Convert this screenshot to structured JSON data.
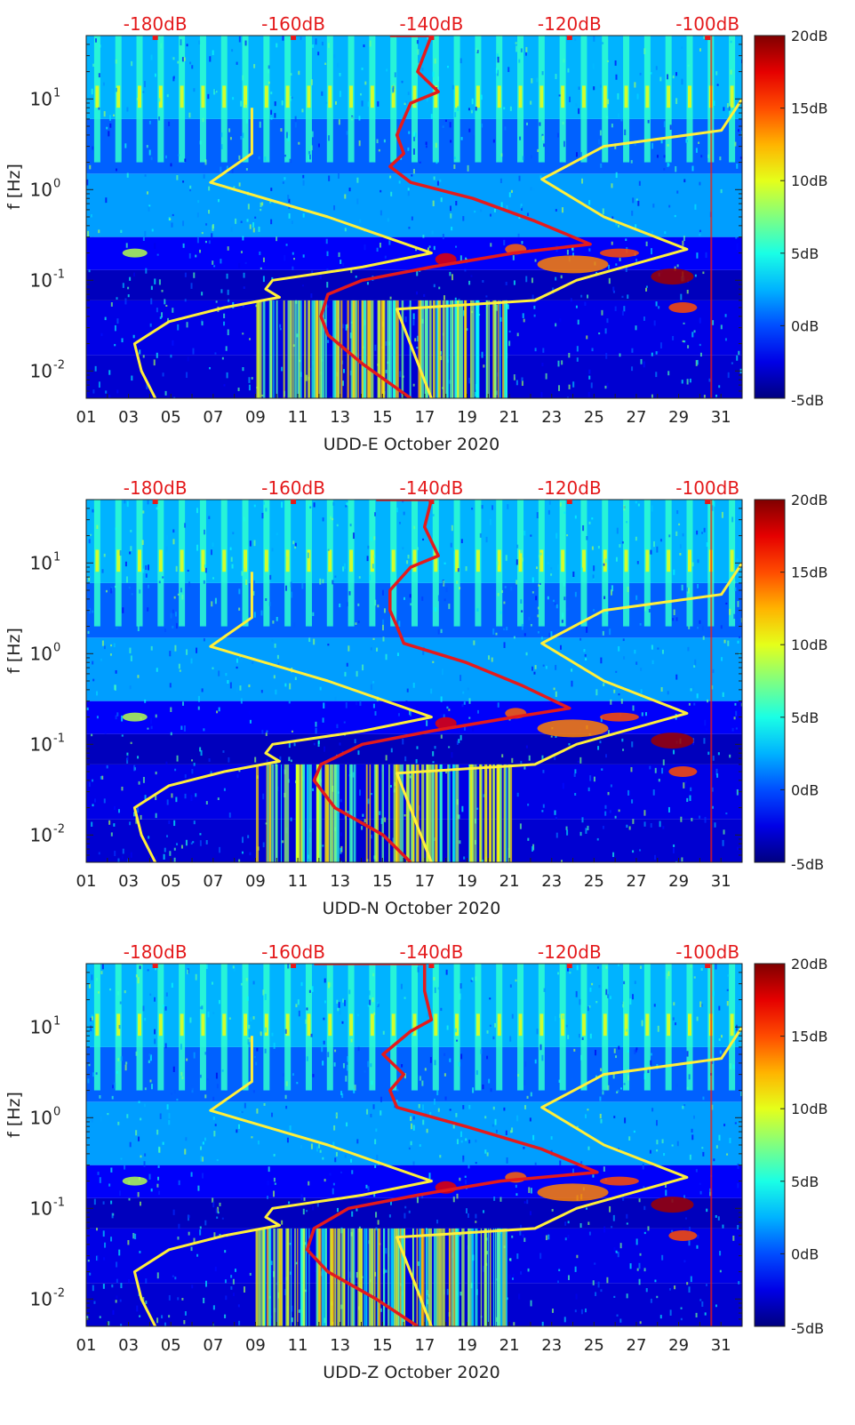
{
  "figure": {
    "x_ticks": [
      "01",
      "03",
      "05",
      "07",
      "09",
      "11",
      "13",
      "15",
      "17",
      "19",
      "21",
      "23",
      "25",
      "27",
      "29",
      "31"
    ],
    "top_ticks": [
      "-180dB",
      "-160dB",
      "-140dB",
      "-120dB",
      "-100dB"
    ],
    "y_label": "f [Hz]",
    "colorbar_ticks": [
      "20dB",
      "15dB",
      "10dB",
      "5dB",
      "0dB",
      "-5dB"
    ]
  },
  "colors": {
    "red_curve": "#e41a1c",
    "yellow_curve": "#ffef3a",
    "top_axis_text": "#e41a1c"
  },
  "chart_data": [
    {
      "type": "heatmap",
      "title": "",
      "xlabel": "UDD-E October 2020",
      "ylabel": "f [Hz]",
      "x_unit": "day of October 2020",
      "xlim": [
        1,
        32
      ],
      "ylim": [
        0.005,
        50
      ],
      "y_scale": "log",
      "colorbar": {
        "range": [
          -5,
          20
        ],
        "unit": "dB",
        "colormap": "jet"
      },
      "top_axis": {
        "ticks": [
          "-180dB",
          "-160dB",
          "-140dB",
          "-120dB",
          "-100dB"
        ],
        "range_dB": [
          -190,
          -95
        ]
      },
      "series": [
        {
          "color": "red",
          "axis": "top",
          "points": [
            [
              -146,
              50
            ],
            [
              -140,
              50
            ],
            [
              -142,
              20
            ],
            [
              -139,
              12
            ],
            [
              -143,
              9
            ],
            [
              -144,
              6
            ],
            [
              -145,
              4
            ],
            [
              -144,
              2.5
            ],
            [
              -146,
              1.8
            ],
            [
              -143,
              1.2
            ],
            [
              -134,
              0.8
            ],
            [
              -125,
              0.45
            ],
            [
              -117,
              0.25
            ],
            [
              -128,
              0.2
            ],
            [
              -140,
              0.14
            ],
            [
              -150,
              0.1
            ],
            [
              -155,
              0.07
            ],
            [
              -156,
              0.04
            ],
            [
              -155,
              0.025
            ],
            [
              -150,
              0.012
            ],
            [
              -143,
              0.005
            ]
          ]
        },
        {
          "color": "yellow",
          "axis": "top",
          "points": [
            [
              -180,
              0.005
            ],
            [
              -182,
              0.01
            ],
            [
              -183,
              0.02
            ],
            [
              -178,
              0.035
            ],
            [
              -170,
              0.05
            ],
            [
              -162,
              0.065
            ],
            [
              -164,
              0.08
            ],
            [
              -163,
              0.1
            ],
            [
              -150,
              0.14
            ],
            [
              -140,
              0.2
            ],
            [
              -155,
              0.5
            ],
            [
              -172,
              1.2
            ],
            [
              -166,
              2.5
            ],
            [
              -166,
              8
            ]
          ]
        },
        {
          "color": "yellow",
          "axis": "top",
          "points": [
            [
              -140,
              0.005
            ],
            [
              -145,
              0.048
            ],
            [
              -125,
              0.06
            ],
            [
              -119,
              0.1
            ],
            [
              -103,
              0.22
            ],
            [
              -115,
              0.5
            ],
            [
              -124,
              1.3
            ],
            [
              -115,
              3
            ],
            [
              -98,
              4.5
            ],
            [
              -95,
              10
            ]
          ]
        }
      ]
    },
    {
      "type": "heatmap",
      "title": "",
      "xlabel": "UDD-N October 2020",
      "ylabel": "f [Hz]",
      "x_unit": "day of October 2020",
      "xlim": [
        1,
        32
      ],
      "ylim": [
        0.005,
        50
      ],
      "y_scale": "log",
      "colorbar": {
        "range": [
          -5,
          20
        ],
        "unit": "dB",
        "colormap": "jet"
      },
      "top_axis": {
        "ticks": [
          "-180dB",
          "-160dB",
          "-140dB",
          "-120dB",
          "-100dB"
        ],
        "range_dB": [
          -190,
          -95
        ]
      },
      "series": [
        {
          "color": "red",
          "axis": "top",
          "points": [
            [
              -148,
              50
            ],
            [
              -140,
              50
            ],
            [
              -141,
              25
            ],
            [
              -139,
              12
            ],
            [
              -143,
              9
            ],
            [
              -146,
              5
            ],
            [
              -146,
              3
            ],
            [
              -145,
              2
            ],
            [
              -144,
              1.3
            ],
            [
              -135,
              0.8
            ],
            [
              -127,
              0.45
            ],
            [
              -120,
              0.25
            ],
            [
              -128,
              0.2
            ],
            [
              -140,
              0.14
            ],
            [
              -150,
              0.1
            ],
            [
              -156,
              0.06
            ],
            [
              -157,
              0.04
            ],
            [
              -154,
              0.02
            ],
            [
              -147,
              0.01
            ],
            [
              -143,
              0.005
            ]
          ]
        },
        {
          "color": "yellow",
          "axis": "top",
          "points": [
            [
              -180,
              0.005
            ],
            [
              -182,
              0.01
            ],
            [
              -183,
              0.02
            ],
            [
              -178,
              0.035
            ],
            [
              -170,
              0.05
            ],
            [
              -162,
              0.065
            ],
            [
              -164,
              0.08
            ],
            [
              -163,
              0.1
            ],
            [
              -150,
              0.14
            ],
            [
              -140,
              0.2
            ],
            [
              -155,
              0.5
            ],
            [
              -172,
              1.2
            ],
            [
              -166,
              2.5
            ],
            [
              -166,
              8
            ]
          ]
        },
        {
          "color": "yellow",
          "axis": "top",
          "points": [
            [
              -140,
              0.005
            ],
            [
              -145,
              0.048
            ],
            [
              -125,
              0.06
            ],
            [
              -119,
              0.1
            ],
            [
              -103,
              0.22
            ],
            [
              -115,
              0.5
            ],
            [
              -124,
              1.3
            ],
            [
              -115,
              3
            ],
            [
              -98,
              4.5
            ],
            [
              -95,
              10
            ]
          ]
        }
      ]
    },
    {
      "type": "heatmap",
      "title": "",
      "xlabel": "UDD-Z October 2020",
      "ylabel": "f [Hz]",
      "x_unit": "day of October 2020",
      "xlim": [
        1,
        32
      ],
      "ylim": [
        0.005,
        50
      ],
      "y_scale": "log",
      "colorbar": {
        "range": [
          -5,
          20
        ],
        "unit": "dB",
        "colormap": "jet"
      },
      "top_axis": {
        "ticks": [
          "-180dB",
          "-160dB",
          "-140dB",
          "-120dB",
          "-100dB"
        ],
        "range_dB": [
          -190,
          -95
        ]
      },
      "series": [
        {
          "color": "red",
          "axis": "top",
          "points": [
            [
              -157,
              50
            ],
            [
              -141,
              50
            ],
            [
              -141,
              25
            ],
            [
              -140,
              12
            ],
            [
              -143,
              9
            ],
            [
              -147,
              5
            ],
            [
              -144,
              3
            ],
            [
              -146,
              2
            ],
            [
              -145,
              1.3
            ],
            [
              -135,
              0.8
            ],
            [
              -124,
              0.45
            ],
            [
              -116,
              0.25
            ],
            [
              -130,
              0.2
            ],
            [
              -142,
              0.14
            ],
            [
              -152,
              0.1
            ],
            [
              -157,
              0.06
            ],
            [
              -158,
              0.035
            ],
            [
              -155,
              0.02
            ],
            [
              -148,
              0.01
            ],
            [
              -142,
              0.005
            ]
          ]
        },
        {
          "color": "yellow",
          "axis": "top",
          "points": [
            [
              -180,
              0.005
            ],
            [
              -182,
              0.01
            ],
            [
              -183,
              0.02
            ],
            [
              -178,
              0.035
            ],
            [
              -170,
              0.05
            ],
            [
              -162,
              0.065
            ],
            [
              -164,
              0.08
            ],
            [
              -163,
              0.1
            ],
            [
              -150,
              0.14
            ],
            [
              -140,
              0.2
            ],
            [
              -155,
              0.5
            ],
            [
              -172,
              1.2
            ],
            [
              -166,
              2.5
            ],
            [
              -166,
              8
            ]
          ]
        },
        {
          "color": "yellow",
          "axis": "top",
          "points": [
            [
              -140,
              0.005
            ],
            [
              -145,
              0.048
            ],
            [
              -125,
              0.06
            ],
            [
              -119,
              0.1
            ],
            [
              -103,
              0.22
            ],
            [
              -115,
              0.5
            ],
            [
              -124,
              1.3
            ],
            [
              -115,
              3
            ],
            [
              -98,
              4.5
            ],
            [
              -95,
              10
            ]
          ]
        }
      ]
    }
  ]
}
